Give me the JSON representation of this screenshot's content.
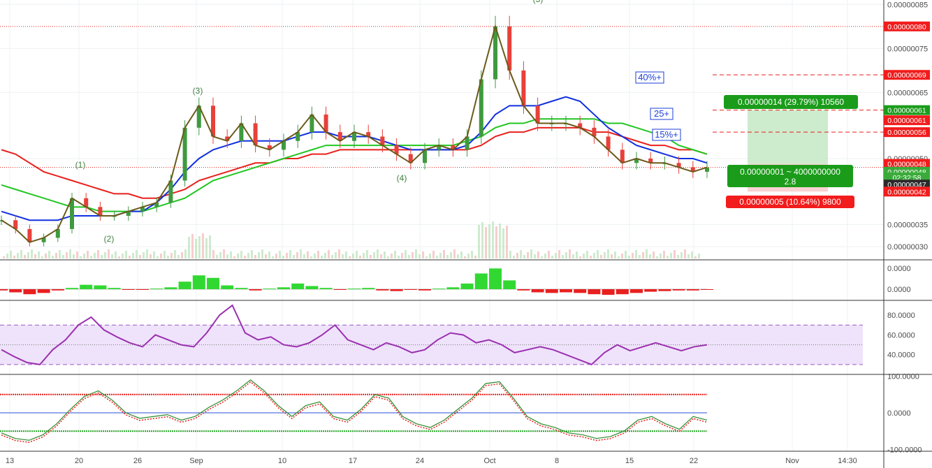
{
  "chart_data": {
    "type": "candlestick",
    "x_tick_labels": [
      "13",
      "20",
      "26",
      "Sep",
      "10",
      "17",
      "24",
      "Oct",
      "8",
      "15",
      "22",
      "Nov",
      "14:30"
    ],
    "price_axis": {
      "ylim": [
        2.7e-07,
        8.6e-07
      ],
      "tick_labels": [
        "0.00000085",
        "0.00000075",
        "0.00000065",
        "0.00000050",
        "0.00000035",
        "0.00000030"
      ],
      "tick_values": [
        8.5e-07,
        7.5e-07,
        6.5e-07,
        5e-07,
        3.5e-07,
        3e-07
      ]
    },
    "price_series": {
      "name": "close",
      "close": [
        3.6e-07,
        3.4e-07,
        3.1e-07,
        3.2e-07,
        3.4e-07,
        4.1e-07,
        3.9e-07,
        3.7e-07,
        3.7e-07,
        3.8e-07,
        3.9e-07,
        4e-07,
        4.5e-07,
        5.7e-07,
        6.2e-07,
        5.5e-07,
        5.4e-07,
        5.8e-07,
        5.3e-07,
        5.2e-07,
        5.4e-07,
        5.6e-07,
        6e-07,
        5.6e-07,
        5.4e-07,
        5.6e-07,
        5.5e-07,
        5.3e-07,
        5.1e-07,
        4.9e-07,
        5.2e-07,
        5.3e-07,
        5.2e-07,
        5.5e-07,
        6.8e-07,
        8e-07,
        7e-07,
        6.2e-07,
        5.8e-07,
        5.8e-07,
        5.8e-07,
        5.7e-07,
        5.5e-07,
        5.2e-07,
        4.9e-07,
        5e-07,
        4.9e-07,
        4.9e-07,
        4.8e-07,
        4.7e-07,
        4.8e-07
      ]
    },
    "moving_averages": [
      {
        "color": "#e8201c",
        "values": [
          5.2e-07,
          5.1e-07,
          4.9e-07,
          4.7e-07,
          4.6e-07,
          4.5e-07,
          4.4e-07,
          4.3e-07,
          4.2e-07,
          4.2e-07,
          4.1e-07,
          4.1e-07,
          4.2e-07,
          4.3e-07,
          4.5e-07,
          4.6e-07,
          4.7e-07,
          4.8e-07,
          4.9e-07,
          4.9e-07,
          5e-07,
          5e-07,
          5.1e-07,
          5.1e-07,
          5.2e-07,
          5.2e-07,
          5.2e-07,
          5.2e-07,
          5.2e-07,
          5.2e-07,
          5.2e-07,
          5.2e-07,
          5.2e-07,
          5.2e-07,
          5.3e-07,
          5.5e-07,
          5.6e-07,
          5.6e-07,
          5.7e-07,
          5.7e-07,
          5.7e-07,
          5.7e-07,
          5.6e-07,
          5.6e-07,
          5.5e-07,
          5.4e-07,
          5.3e-07,
          5.3e-07,
          5.2e-07,
          5.2e-07,
          5.1e-07
        ]
      },
      {
        "color": "#22c622",
        "values": [
          4.4e-07,
          4.3e-07,
          4.2e-07,
          4.1e-07,
          4e-07,
          3.9e-07,
          3.9e-07,
          3.8e-07,
          3.8e-07,
          3.8e-07,
          3.8e-07,
          3.9e-07,
          4e-07,
          4.1e-07,
          4.3e-07,
          4.5e-07,
          4.6e-07,
          4.7e-07,
          4.8e-07,
          4.9e-07,
          5e-07,
          5.1e-07,
          5.2e-07,
          5.3e-07,
          5.3e-07,
          5.3e-07,
          5.3e-07,
          5.3e-07,
          5.3e-07,
          5.3e-07,
          5.3e-07,
          5.3e-07,
          5.3e-07,
          5.4e-07,
          5.5e-07,
          5.7e-07,
          5.8e-07,
          5.8e-07,
          5.9e-07,
          5.9e-07,
          5.9e-07,
          5.9e-07,
          5.9e-07,
          5.8e-07,
          5.8e-07,
          5.7e-07,
          5.6e-07,
          5.5e-07,
          5.3e-07,
          5.2e-07,
          5.1e-07
        ]
      },
      {
        "color": "#1030e0",
        "values": [
          3.8e-07,
          3.7e-07,
          3.6e-07,
          3.6e-07,
          3.6e-07,
          3.7e-07,
          3.7e-07,
          3.7e-07,
          3.7e-07,
          3.8e-07,
          3.8e-07,
          4e-07,
          4.3e-07,
          4.7e-07,
          5e-07,
          5.2e-07,
          5.3e-07,
          5.4e-07,
          5.4e-07,
          5.4e-07,
          5.4e-07,
          5.5e-07,
          5.6e-07,
          5.6e-07,
          5.5e-07,
          5.5e-07,
          5.5e-07,
          5.4e-07,
          5.3e-07,
          5.2e-07,
          5.2e-07,
          5.2e-07,
          5.2e-07,
          5.3e-07,
          5.6e-07,
          6e-07,
          6.2e-07,
          6.2e-07,
          6.2e-07,
          6.3e-07,
          6.4e-07,
          6.3e-07,
          6e-07,
          5.7e-07,
          5.5e-07,
          5.3e-07,
          5.2e-07,
          5.1e-07,
          5e-07,
          5e-07,
          4.9e-07
        ]
      }
    ],
    "horizontal_levels": [
      {
        "value": 8e-07,
        "label": "0.00000080",
        "color": "#e8201c",
        "style": "dotted"
      },
      {
        "value": 6.9e-07,
        "label": "0.00000069",
        "color": "#e8201c",
        "style": "dashed"
      },
      {
        "value": 6.1e-07,
        "label": "0.00000061",
        "color": "#e8201c",
        "style": "dashed"
      },
      {
        "value": 5.6e-07,
        "label": "0.00000056",
        "color": "#e8201c",
        "style": "dashed"
      },
      {
        "value": 4.8e-07,
        "label": "0.00000048",
        "color": "#e8201c",
        "style": "dotted"
      }
    ],
    "price_tags": [
      {
        "label": "0.00000080",
        "value": 8e-07,
        "bg": "#f21c1c"
      },
      {
        "label": "0.00000069",
        "value": 6.9e-07,
        "bg": "#f21c1c"
      },
      {
        "label": "0.00000061",
        "value": 6.1e-07,
        "bg": "#1a9c1a"
      },
      {
        "label": "0.00000061",
        "value": 5.87e-07,
        "bg": "#f21c1c"
      },
      {
        "label": "0.00000056",
        "value": 5.6e-07,
        "bg": "#f21c1c"
      },
      {
        "label": "0.00000048",
        "value": 4.88e-07,
        "bg": "#f21c1c"
      },
      {
        "label": "0.00000048",
        "value": 4.7e-07,
        "bg": "#3aab3a"
      },
      {
        "label": "02:32:58",
        "value": 4.57e-07,
        "bg": "#3aab3a"
      },
      {
        "label": "0.00000047",
        "value": 4.41e-07,
        "bg": "#2b2b2b"
      },
      {
        "label": "0.00000042",
        "value": 4.25e-07,
        "bg": "#f21c1c"
      }
    ],
    "wave_labels": [
      "(1)",
      "(2)",
      "(3)",
      "(4)",
      "(5)"
    ],
    "target_labels": [
      "40%+",
      "25+",
      "15%+"
    ],
    "position": {
      "profit_label": "0.00000014 (29.79%) 10560",
      "ratio_label_1": "0.00000001 ~ 4000000000",
      "ratio_label_2": "2.8",
      "loss_label": "0.00000005 (10.64%) 9800"
    },
    "macd_panel": {
      "tick_labels": [
        "0.0000",
        "0.0000"
      ],
      "histogram": [
        -0.2,
        -0.5,
        -0.8,
        -0.6,
        -0.2,
        0.2,
        0.7,
        0.6,
        0.2,
        -0.1,
        -0.1,
        0.1,
        0.3,
        1.2,
        2.2,
        1.8,
        0.6,
        0.2,
        -0.2,
        0.1,
        0.3,
        0.9,
        0.5,
        0.2,
        -0.1,
        0.1,
        0.2,
        -0.2,
        -0.3,
        -0.1,
        -0.2,
        0.1,
        0.3,
        0.9,
        2.5,
        3.3,
        1.4,
        -0.2,
        -0.5,
        -0.6,
        -0.5,
        -0.6,
        -0.8,
        -0.9,
        -0.8,
        -0.6,
        -0.4,
        -0.3,
        -0.2,
        -0.2,
        -0.1
      ]
    },
    "rsi_panel": {
      "tick_labels": [
        "80.0000",
        "60.0000",
        "40.0000"
      ],
      "tick_values": [
        80,
        60,
        40
      ],
      "ylim": [
        20,
        95
      ],
      "band": [
        30,
        70
      ],
      "midline": 50,
      "values": [
        45,
        38,
        32,
        30,
        45,
        55,
        70,
        78,
        65,
        58,
        52,
        48,
        60,
        55,
        50,
        48,
        62,
        80,
        90,
        62,
        55,
        58,
        50,
        48,
        52,
        60,
        70,
        55,
        50,
        45,
        52,
        48,
        42,
        45,
        55,
        62,
        60,
        52,
        55,
        50,
        42,
        45,
        48,
        45,
        40,
        35,
        30,
        42,
        50,
        44,
        48,
        52,
        48,
        44,
        48,
        50
      ]
    },
    "stoch_panel": {
      "tick_labels": [
        "100.0000",
        "0.0000",
        "-100.0000"
      ],
      "tick_values": [
        100,
        0,
        -100
      ],
      "ylim": [
        -105,
        105
      ],
      "upper_level": 50,
      "lower_level": -50,
      "values": [
        -55,
        -70,
        -75,
        -60,
        -30,
        10,
        45,
        60,
        35,
        0,
        -15,
        -10,
        -5,
        -20,
        -10,
        15,
        35,
        60,
        90,
        60,
        20,
        -10,
        20,
        30,
        -10,
        -20,
        10,
        50,
        40,
        -10,
        -30,
        -40,
        -20,
        10,
        40,
        80,
        85,
        40,
        -10,
        -30,
        -40,
        -55,
        -60,
        -70,
        -65,
        -50,
        -20,
        -10,
        -30,
        -45,
        -10,
        -20
      ]
    }
  }
}
